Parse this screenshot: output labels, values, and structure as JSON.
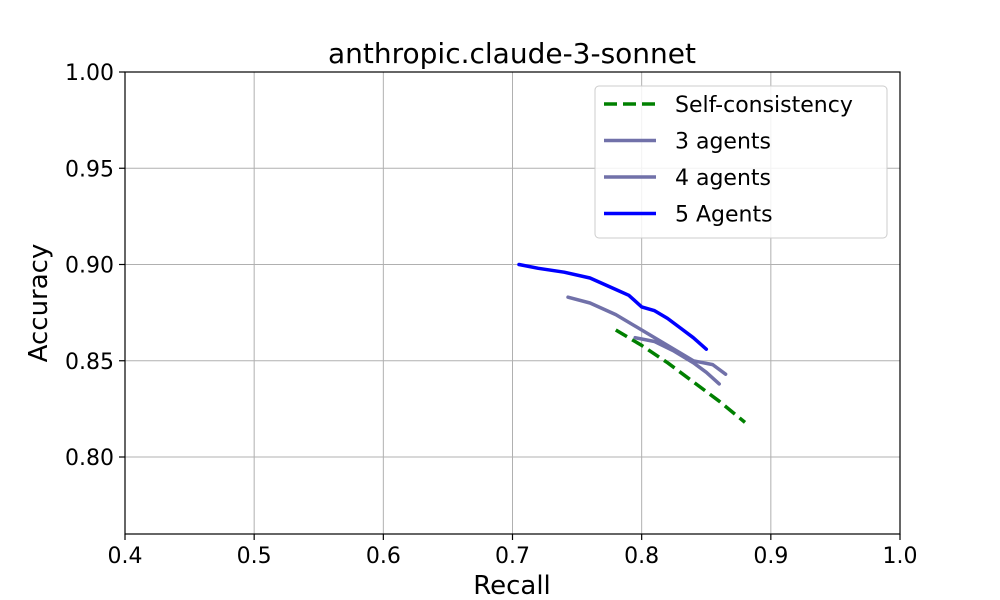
{
  "chart_data": {
    "type": "line",
    "title": "anthropic.claude-3-sonnet",
    "xlabel": "Recall",
    "ylabel": "Accuracy",
    "xlim": [
      0.4,
      1.0
    ],
    "ylim": [
      0.76,
      1.0
    ],
    "xticks": [
      "0.4",
      "0.5",
      "0.6",
      "0.7",
      "0.8",
      "0.9",
      "1.0"
    ],
    "yticks": [
      "0.80",
      "0.85",
      "0.90",
      "0.95",
      "1.00"
    ],
    "grid": true,
    "legend_position": "top-right",
    "series": [
      {
        "name": "Self-consistency",
        "color": "#008000",
        "dash": "dashed",
        "x": [
          0.78,
          0.8,
          0.82,
          0.84,
          0.86,
          0.88
        ],
        "y": [
          0.866,
          0.858,
          0.849,
          0.839,
          0.829,
          0.818
        ]
      },
      {
        "name": "3 agents",
        "color": "#7171a9",
        "dash": "solid",
        "x": [
          0.743,
          0.76,
          0.78,
          0.8,
          0.82,
          0.84,
          0.855,
          0.865
        ],
        "y": [
          0.883,
          0.88,
          0.874,
          0.866,
          0.858,
          0.85,
          0.848,
          0.843
        ]
      },
      {
        "name": "4 agents",
        "color": "#7171a9",
        "dash": "solid",
        "x": [
          0.795,
          0.81,
          0.825,
          0.84,
          0.85,
          0.86
        ],
        "y": [
          0.862,
          0.86,
          0.855,
          0.849,
          0.844,
          0.838
        ]
      },
      {
        "name": "5 Agents",
        "color": "#0000ff",
        "dash": "solid",
        "x": [
          0.705,
          0.72,
          0.74,
          0.76,
          0.78,
          0.79,
          0.8,
          0.81,
          0.82,
          0.83,
          0.84,
          0.85
        ],
        "y": [
          0.9,
          0.898,
          0.896,
          0.893,
          0.887,
          0.884,
          0.878,
          0.876,
          0.872,
          0.867,
          0.862,
          0.856
        ]
      }
    ]
  }
}
